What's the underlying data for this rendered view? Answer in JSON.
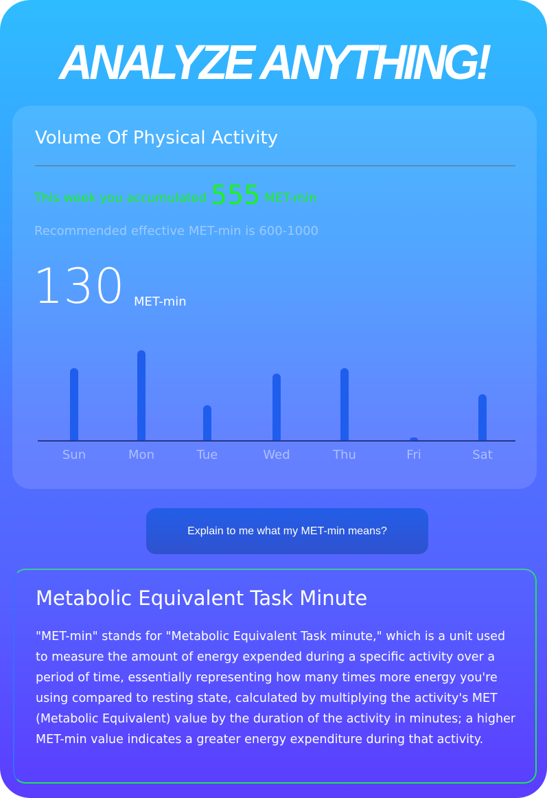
{
  "headline": "ANALYZE ANYTHING!",
  "card": {
    "title": "Volume Of Physical Activity",
    "week_prefix": "This week you accumulated",
    "week_total": "555",
    "week_unit": "MET-min",
    "recommendation": "Recommended effective MET-min is 600-1000",
    "selected_value": "130",
    "selected_unit": "MET-min"
  },
  "chart_data": {
    "type": "bar",
    "categories": [
      "Sun",
      "Mon",
      "Tue",
      "Wed",
      "Thu",
      "Fri",
      "Sat"
    ],
    "values": [
      104,
      130,
      51,
      96,
      104,
      4,
      66
    ],
    "ylim": [
      0,
      130
    ],
    "grid": false,
    "colors": {
      "bar": "#1f5ded"
    }
  },
  "button": {
    "label": "Explain to me what my MET-min means?"
  },
  "explanation": {
    "title": "Metabolic Equivalent Task Minute",
    "body": "\"MET-min\" stands for \"Metabolic Equivalent Task minute,\" which is a unit used to measure the amount of energy expended during a specific activity over a period of time, essentially representing how many times more energy you're using compared to resting state, calculated by multiplying the activity's MET (Metabolic Equivalent) value by the duration of the activity in minutes; a higher MET-min value indicates a greater energy expenditure during that activity."
  }
}
